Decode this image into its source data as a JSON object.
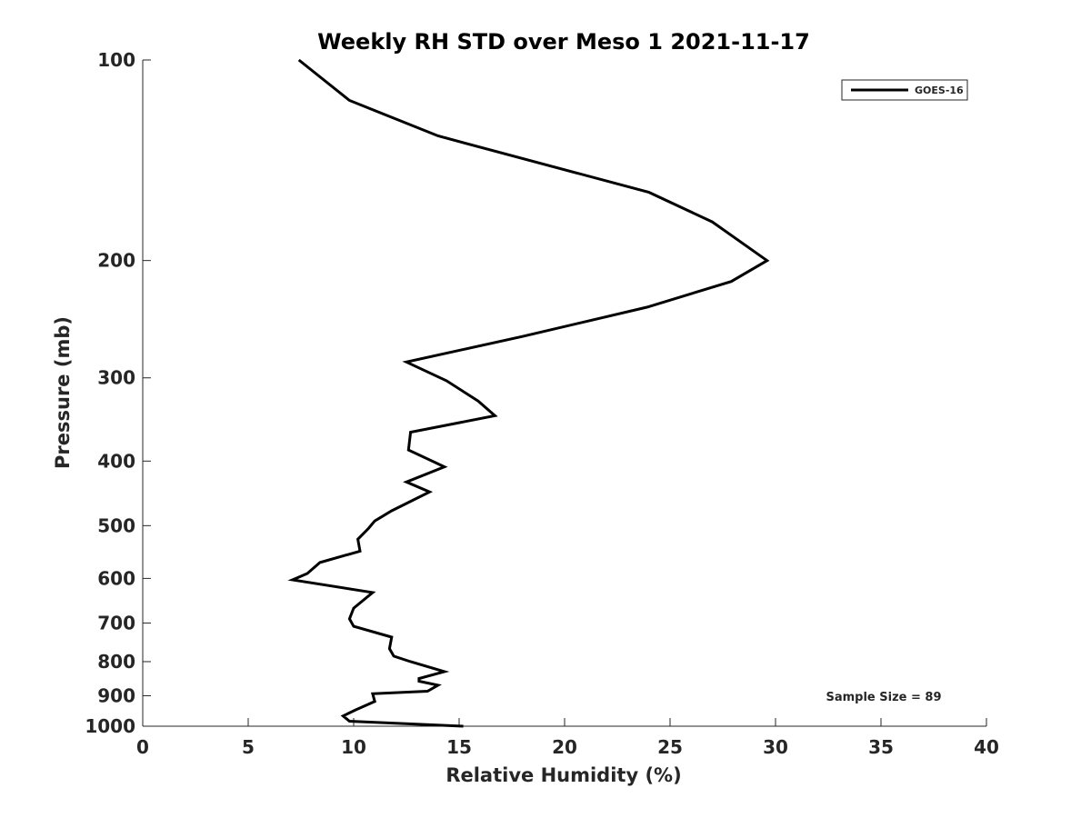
{
  "chart_data": {
    "type": "line",
    "title": "Weekly RH STD over Meso 1 2021-11-17",
    "xlabel": "Relative Humidity (%)",
    "ylabel": "Pressure (mb)",
    "xlim": [
      0,
      40
    ],
    "ylim": [
      100,
      1000
    ],
    "yscale": "log",
    "yreversed": true,
    "xticks": [
      "0",
      "5",
      "10",
      "15",
      "20",
      "25",
      "30",
      "35",
      "40"
    ],
    "yticks": [
      "100",
      "200",
      "300",
      "400",
      "500",
      "600",
      "700",
      "800",
      "900",
      "1000"
    ],
    "grid": false,
    "legend_position": "top-right",
    "annotation": "Sample Size = 89",
    "colors": {
      "line": "#000000",
      "text": "#262626"
    },
    "series": [
      {
        "name": "GOES-16",
        "x": [
          7.4,
          9.8,
          14.0,
          24.0,
          27.0,
          29.6,
          27.9,
          23.9,
          18.0,
          12.5,
          14.4,
          15.9,
          16.7,
          12.7,
          12.6,
          14.3,
          12.5,
          13.6,
          11.8,
          11.0,
          10.7,
          10.2,
          10.3,
          8.4,
          7.8,
          7.1,
          10.9,
          10.0,
          9.8,
          10.0,
          11.8,
          11.7,
          11.9,
          12.7,
          14.3,
          13.1,
          13.1,
          14.0,
          13.5,
          10.9,
          11.0,
          10.1,
          9.5,
          9.8,
          15.2
        ],
        "y": [
          100,
          115,
          130,
          158,
          175,
          200,
          215,
          235,
          260,
          284,
          303,
          325,
          342,
          362,
          385,
          408,
          430,
          445,
          475,
          492,
          505,
          524,
          546,
          568,
          590,
          603,
          630,
          665,
          690,
          708,
          735,
          765,
          785,
          800,
          828,
          848,
          856,
          868,
          886,
          894,
          918,
          945,
          965,
          983,
          1000
        ]
      }
    ]
  }
}
